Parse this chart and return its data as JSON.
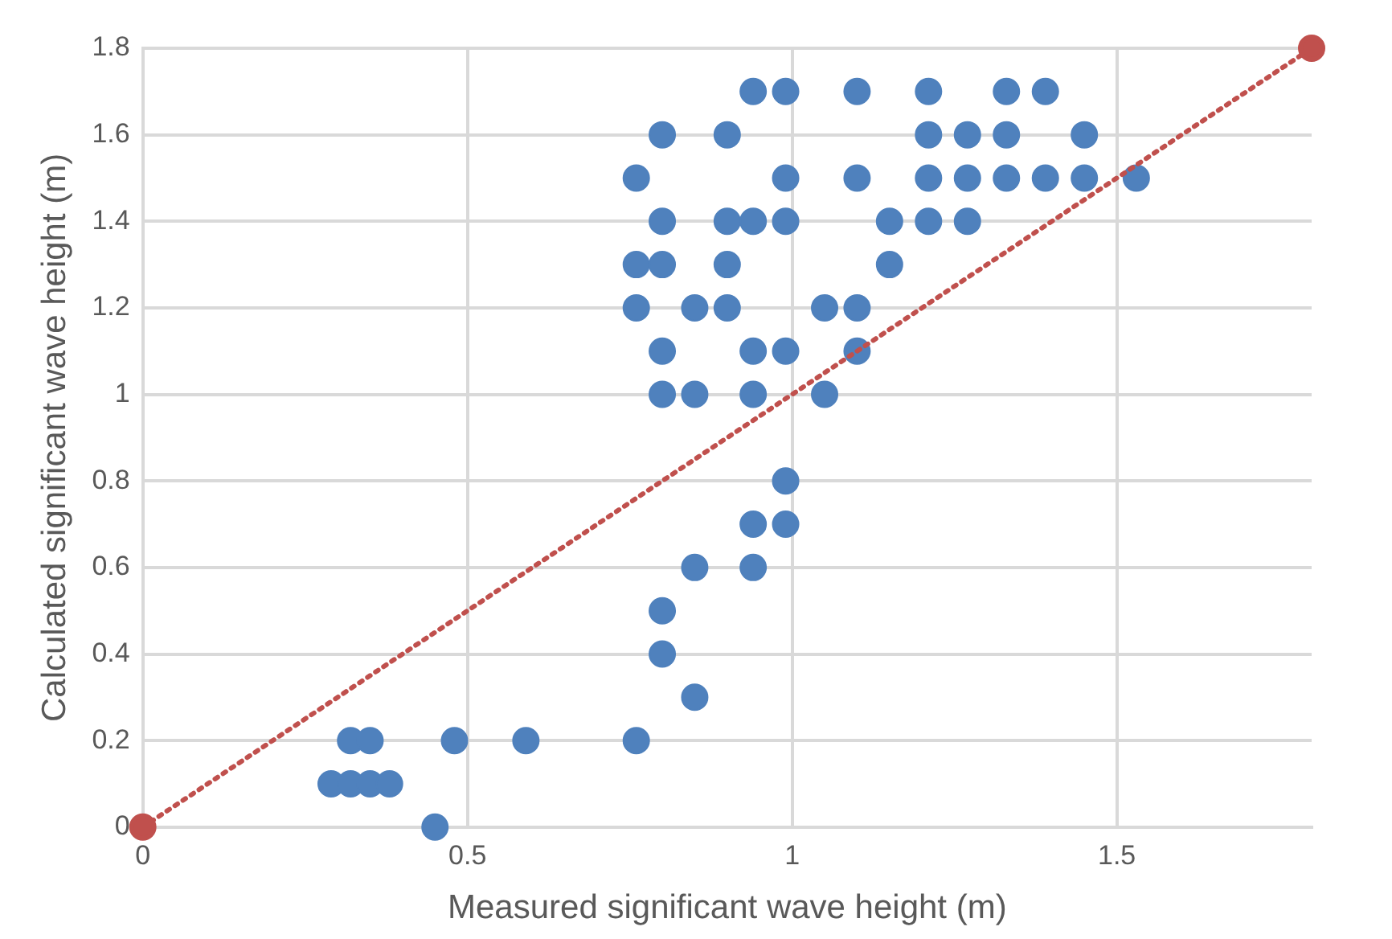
{
  "chart_data": {
    "type": "scatter",
    "xlabel": "Measured significant wave height (m)",
    "ylabel": "Calculated significant wave height (m)",
    "xlim": [
      0,
      1.8
    ],
    "xticks": [
      0,
      0.5,
      1,
      1.5
    ],
    "ylim": [
      0,
      1.8
    ],
    "yticks": [
      0,
      0.2,
      0.4,
      0.6,
      0.8,
      1,
      1.2,
      1.4,
      1.6,
      1.8
    ],
    "grid": true,
    "legend": false,
    "marker": "circle",
    "series": [
      {
        "color": "#4f81bd",
        "x": [
          0.94,
          0.99,
          1.1,
          1.21,
          1.33,
          1.39,
          0.8,
          0.9,
          1.21,
          1.27,
          1.33,
          1.45,
          0.76,
          0.99,
          1.1,
          1.21,
          1.27,
          1.33,
          1.39,
          1.45,
          1.53,
          0.8,
          0.9,
          0.94,
          0.99,
          1.15,
          1.21,
          1.27,
          0.76,
          0.8,
          0.9,
          1.15,
          0.76,
          0.85,
          0.9,
          1.05,
          1.1,
          0.8,
          0.94,
          0.99,
          1.1,
          0.8,
          0.85,
          0.94,
          1.05,
          0.99,
          0.94,
          0.99,
          0.85,
          0.94,
          0.8,
          0.8,
          0.85,
          0.32,
          0.35,
          0.48,
          0.59,
          0.76,
          0.29,
          0.32,
          0.35,
          0.38,
          0.45
        ],
        "values": [
          1.7,
          1.7,
          1.7,
          1.7,
          1.7,
          1.7,
          1.6,
          1.6,
          1.6,
          1.6,
          1.6,
          1.6,
          1.5,
          1.5,
          1.5,
          1.5,
          1.5,
          1.5,
          1.5,
          1.5,
          1.5,
          1.4,
          1.4,
          1.4,
          1.4,
          1.4,
          1.4,
          1.4,
          1.3,
          1.3,
          1.3,
          1.3,
          1.2,
          1.2,
          1.2,
          1.2,
          1.2,
          1.1,
          1.1,
          1.1,
          1.1,
          1.0,
          1.0,
          1.0,
          1.0,
          0.8,
          0.7,
          0.7,
          0.6,
          0.6,
          0.5,
          0.4,
          0.3,
          0.2,
          0.2,
          0.2,
          0.2,
          0.2,
          0.1,
          0.1,
          0.1,
          0.1,
          0
        ]
      },
      {
        "type": "line",
        "color": "#c0504d",
        "line_style": "dotted",
        "x": [
          0,
          1.8
        ],
        "values": [
          0,
          1.8
        ]
      }
    ]
  }
}
